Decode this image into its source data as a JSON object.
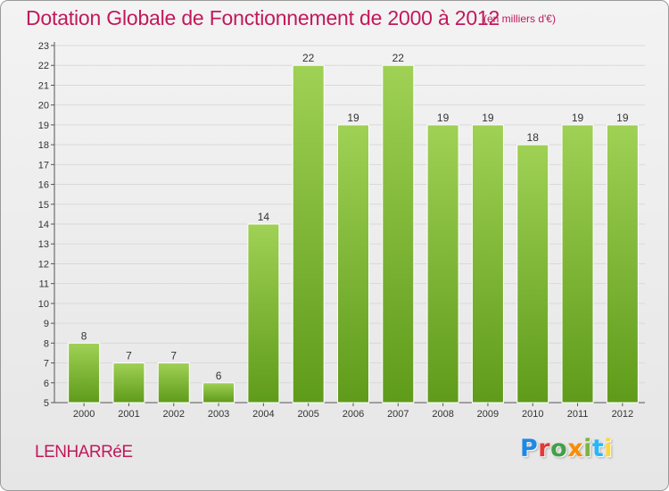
{
  "header": {
    "title": "Dotation Globale de Fonctionnement de 2000 à 2012",
    "unit": "(en milliers d'€)"
  },
  "footer": {
    "commune": "LENHARRéE",
    "logo": "Proxiti",
    "logo_colors": [
      "#1e88e5",
      "#e53935",
      "#43a047",
      "#fb8c00",
      "#7cb342",
      "#29b6f6",
      "#fdd835"
    ]
  },
  "chart_data": {
    "type": "bar",
    "title": "Dotation Globale de Fonctionnement de 2000 à 2012",
    "subtitle": "(en milliers d'€)",
    "xlabel": "",
    "ylabel": "",
    "categories": [
      "2000",
      "2001",
      "2002",
      "2003",
      "2004",
      "2005",
      "2006",
      "2007",
      "2008",
      "2009",
      "2010",
      "2011",
      "2012"
    ],
    "values": [
      8,
      7,
      7,
      6,
      14,
      22,
      19,
      22,
      19,
      19,
      18,
      19,
      19
    ],
    "ylim": [
      5,
      23
    ],
    "yticks": [
      5,
      6,
      7,
      8,
      9,
      10,
      11,
      12,
      13,
      14,
      15,
      16,
      17,
      18,
      19,
      20,
      21,
      22,
      23
    ],
    "grid": true,
    "bar_color_top": "#9fd155",
    "bar_color_bottom": "#5f9b1a",
    "grid_color": "#d9d9d9"
  }
}
